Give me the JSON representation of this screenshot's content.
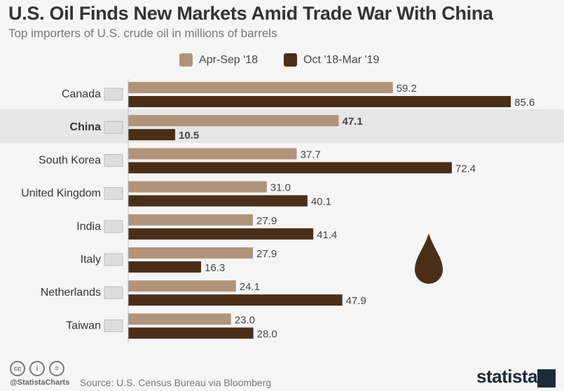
{
  "title": "U.S. Oil Finds New Markets Amid Trade War With China",
  "subtitle": "Top importers of U.S. crude oil in millions of barrels",
  "footer": {
    "handle": "@StatistaCharts",
    "source": "Source: U.S. Census Bureau via Bloomberg",
    "logo": "statista",
    "license_icons": [
      "cc-icon",
      "by-icon",
      "nd-icon"
    ]
  },
  "colors": {
    "series1": "#b09479",
    "series2": "#4a2e17",
    "highlight": "#e6e6e6"
  },
  "chart_data": {
    "type": "bar",
    "orientation": "horizontal",
    "categories": [
      "Canada",
      "China",
      "South Korea",
      "United Kingdom",
      "India",
      "Italy",
      "Netherlands",
      "Taiwan"
    ],
    "highlighted_category": "China",
    "series": [
      {
        "name": "Apr-Sep '18",
        "values": [
          59.2,
          47.1,
          37.7,
          31.0,
          27.9,
          27.9,
          24.1,
          23.0
        ]
      },
      {
        "name": "Oct '18-Mar '19",
        "values": [
          85.6,
          10.5,
          72.4,
          40.1,
          41.4,
          16.3,
          47.9,
          28.0
        ]
      }
    ],
    "legend": "top"
  }
}
